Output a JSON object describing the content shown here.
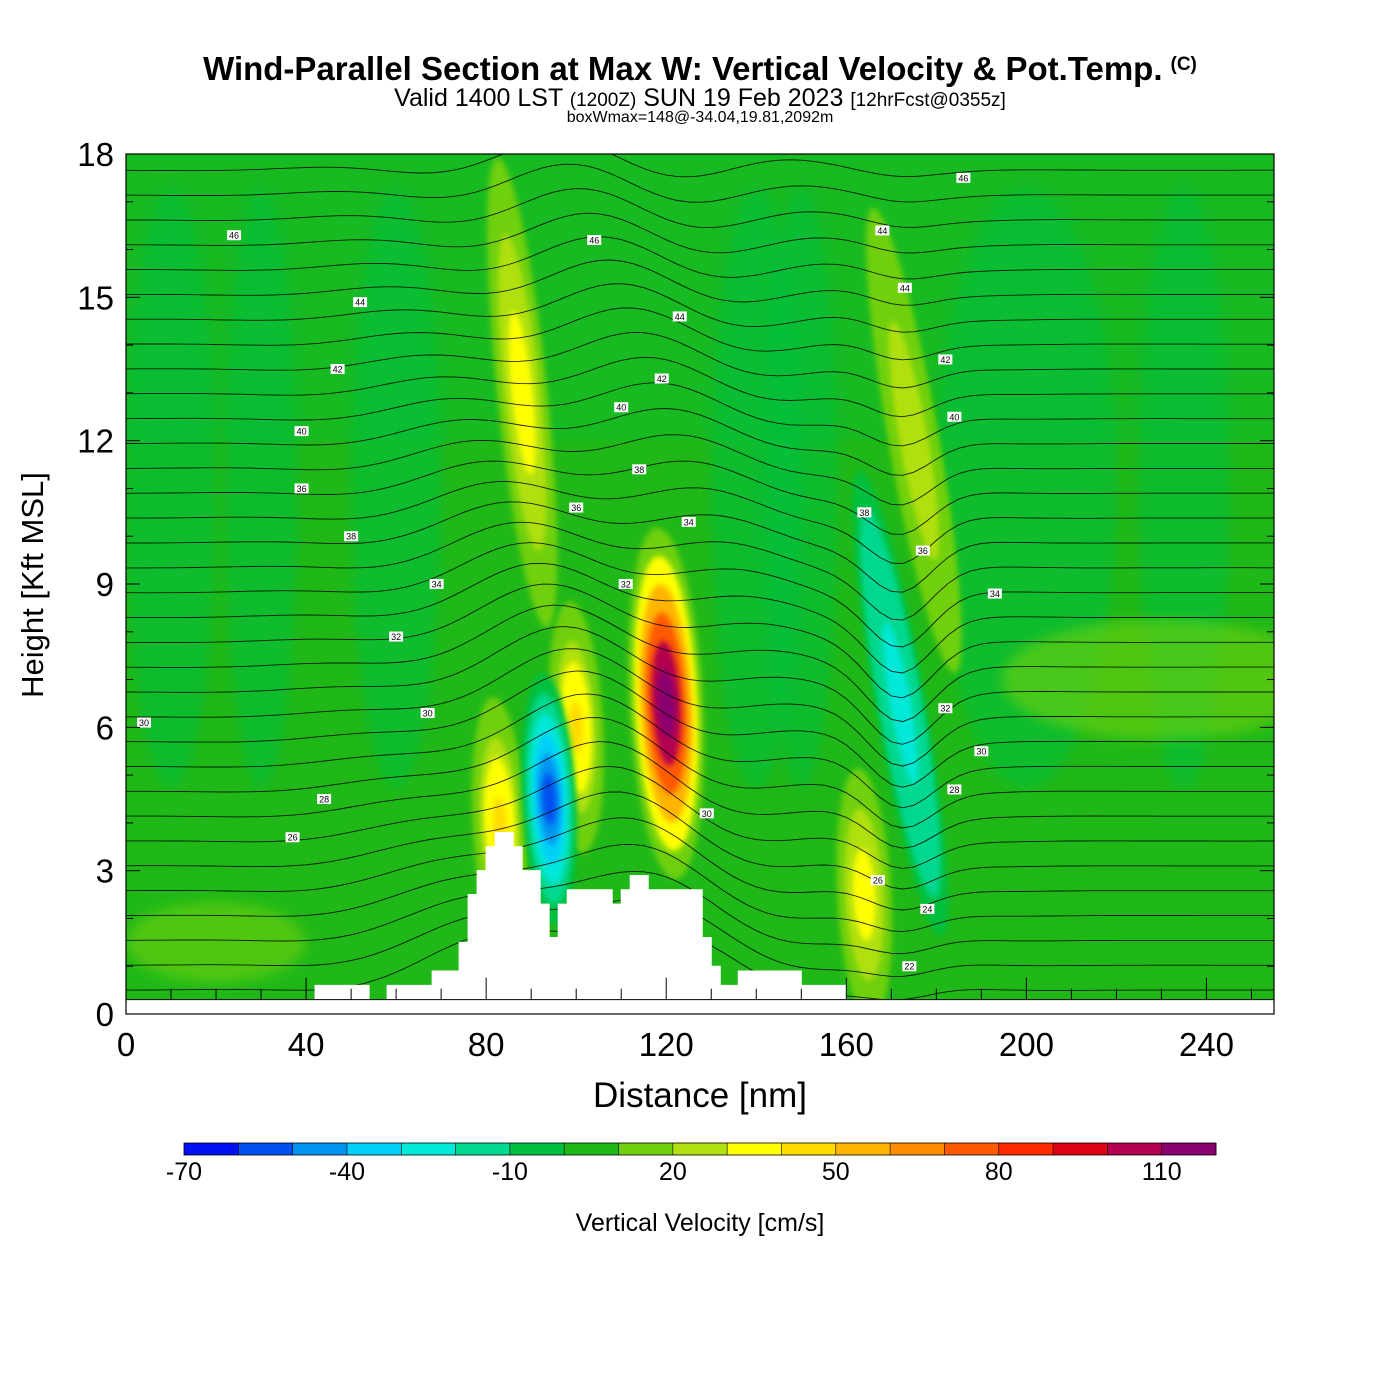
{
  "header": {
    "title": "Wind-Parallel Section at Max W: Vertical Velocity & Pot.Temp.",
    "copyright": "(C)",
    "valid_prefix": "Valid 1400 LST",
    "utc": "(1200Z)",
    "valid_date": "SUN 19 Feb 2023",
    "forecast": "[12hrFcst@0355z]",
    "box_info": "boxWmax=148@-34.04,19.81,2092m"
  },
  "chart_data": {
    "type": "heatmap",
    "title": "Wind-Parallel Section at Max W: Vertical Velocity & Pot.Temp.",
    "xlabel": "Distance [nm]",
    "ylabel": "Height [Kft MSL]",
    "xlim": [
      0,
      255
    ],
    "ylim": [
      0,
      18
    ],
    "x_ticks": [
      0,
      40,
      80,
      120,
      160,
      200,
      240
    ],
    "y_ticks": [
      0,
      3,
      6,
      9,
      12,
      15,
      18
    ],
    "colorbar": {
      "label": "Vertical Velocity [cm/s]",
      "tick_values": [
        -70,
        -40,
        -10,
        20,
        50,
        80,
        110
      ],
      "levels": [
        -70,
        -60,
        -50,
        -40,
        -30,
        -20,
        -10,
        0,
        10,
        20,
        30,
        40,
        50,
        60,
        70,
        80,
        90,
        100,
        110,
        120,
        130
      ],
      "colors": [
        "#0010f0",
        "#0050f0",
        "#0094f0",
        "#00d0f8",
        "#00e8d8",
        "#00d890",
        "#00c040",
        "#20b818",
        "#70d010",
        "#b0e010",
        "#ffff00",
        "#ffdc00",
        "#ffb400",
        "#ff8c00",
        "#ff5a00",
        "#ff2800",
        "#e00014",
        "#b40050",
        "#880070"
      ]
    },
    "w_features": [
      {
        "name": "updraft core",
        "x": 120,
        "y": 6.5,
        "w_max": 148
      },
      {
        "name": "updraft",
        "x": 100,
        "y": 6,
        "w_max": 50
      },
      {
        "name": "updraft",
        "x": 83,
        "y": 4,
        "w_max": 50
      },
      {
        "name": "downdraft",
        "x": 94,
        "y": 4.5,
        "w_min": -60
      },
      {
        "name": "updraft band",
        "x": 88,
        "y": 13,
        "w_max": 40
      },
      {
        "name": "updraft band",
        "x": 175,
        "y": 12,
        "w_max": 30
      },
      {
        "name": "downdraft band",
        "x": 172,
        "y": 6.5,
        "w_min": -30
      },
      {
        "name": "updraft",
        "x": 164,
        "y": 2.5,
        "w_max": 40
      }
    ],
    "terrain": {
      "x": [
        0,
        40,
        42,
        54,
        58,
        68,
        74,
        76,
        78,
        80,
        82,
        84,
        86,
        88,
        92,
        94,
        96,
        98,
        100,
        102,
        108,
        110,
        112,
        116,
        128,
        130,
        132,
        134,
        136,
        150,
        160,
        255
      ],
      "height": [
        0.3,
        0.3,
        0.6,
        0.3,
        0.6,
        0.9,
        1.5,
        2.5,
        3.0,
        3.5,
        3.8,
        3.8,
        3.5,
        3.0,
        2.3,
        1.6,
        2.3,
        2.6,
        2.6,
        2.6,
        2.3,
        2.6,
        2.9,
        2.6,
        1.6,
        1.0,
        0.6,
        0.6,
        0.9,
        0.6,
        0.3,
        0.3
      ]
    },
    "isentrope_labels": [
      {
        "text": "46",
        "x": 24,
        "y": 16.3
      },
      {
        "text": "44",
        "x": 52,
        "y": 14.9
      },
      {
        "text": "42",
        "x": 47,
        "y": 13.5
      },
      {
        "text": "40",
        "x": 39,
        "y": 12.2
      },
      {
        "text": "36",
        "x": 39,
        "y": 11.0
      },
      {
        "text": "38",
        "x": 50,
        "y": 10.0
      },
      {
        "text": "34",
        "x": 69,
        "y": 9.0
      },
      {
        "text": "32",
        "x": 60,
        "y": 7.9
      },
      {
        "text": "30",
        "x": 67,
        "y": 6.3
      },
      {
        "text": "30",
        "x": 4,
        "y": 6.1
      },
      {
        "text": "28",
        "x": 44,
        "y": 4.5
      },
      {
        "text": "26",
        "x": 37,
        "y": 3.7
      },
      {
        "text": "46",
        "x": 104,
        "y": 16.2
      },
      {
        "text": "44",
        "x": 123,
        "y": 14.6
      },
      {
        "text": "42",
        "x": 119,
        "y": 13.3
      },
      {
        "text": "40",
        "x": 110,
        "y": 12.7
      },
      {
        "text": "38",
        "x": 114,
        "y": 11.4
      },
      {
        "text": "36",
        "x": 100,
        "y": 10.6
      },
      {
        "text": "34",
        "x": 125,
        "y": 10.3
      },
      {
        "text": "32",
        "x": 111,
        "y": 9.0
      },
      {
        "text": "30",
        "x": 129,
        "y": 4.2
      },
      {
        "text": "46",
        "x": 186,
        "y": 17.5
      },
      {
        "text": "44",
        "x": 168,
        "y": 16.4
      },
      {
        "text": "44",
        "x": 173,
        "y": 15.2
      },
      {
        "text": "42",
        "x": 182,
        "y": 13.7
      },
      {
        "text": "40",
        "x": 184,
        "y": 12.5
      },
      {
        "text": "38",
        "x": 164,
        "y": 10.5
      },
      {
        "text": "36",
        "x": 177,
        "y": 9.7
      },
      {
        "text": "34",
        "x": 193,
        "y": 8.8
      },
      {
        "text": "32",
        "x": 182,
        "y": 6.4
      },
      {
        "text": "30",
        "x": 190,
        "y": 5.5
      },
      {
        "text": "28",
        "x": 184,
        "y": 4.7
      },
      {
        "text": "26",
        "x": 167,
        "y": 2.8
      },
      {
        "text": "24",
        "x": 178,
        "y": 2.2
      },
      {
        "text": "22",
        "x": 174,
        "y": 1.0
      }
    ]
  }
}
